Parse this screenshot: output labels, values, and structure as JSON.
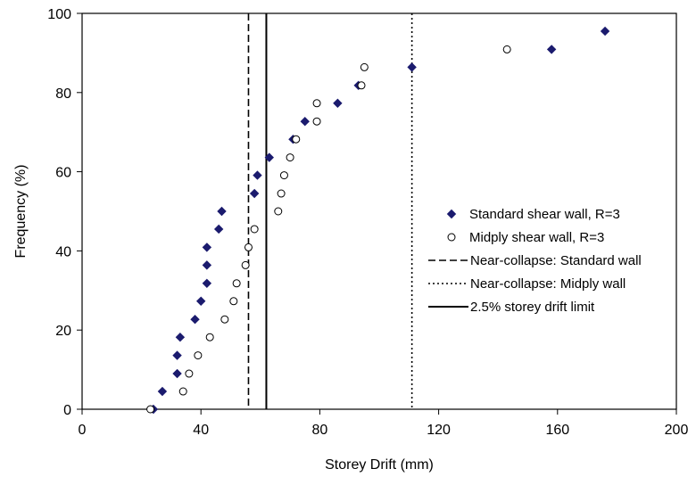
{
  "chart_data": {
    "type": "scatter",
    "title": "",
    "xlabel": "Storey Drift (mm)",
    "ylabel": "Frequency (%)",
    "xlim": [
      0,
      200
    ],
    "ylim": [
      0,
      100
    ],
    "xticks": [
      0,
      40,
      80,
      120,
      160,
      200
    ],
    "yticks": [
      0,
      20,
      40,
      60,
      80,
      100
    ],
    "grid": false,
    "legend_position": "right",
    "series": [
      {
        "name": "Standard shear wall, R=3",
        "marker": "filled-diamond",
        "color": "#1b1b6e",
        "points": [
          [
            24,
            0
          ],
          [
            27,
            4.5
          ],
          [
            32,
            9
          ],
          [
            32,
            13.6
          ],
          [
            33,
            18.2
          ],
          [
            38,
            22.7
          ],
          [
            40,
            27.3
          ],
          [
            42,
            31.8
          ],
          [
            42,
            36.4
          ],
          [
            42,
            40.9
          ],
          [
            46,
            45.5
          ],
          [
            47,
            50
          ],
          [
            58,
            54.5
          ],
          [
            59,
            59.1
          ],
          [
            63,
            63.6
          ],
          [
            71,
            68.2
          ],
          [
            75,
            72.7
          ],
          [
            86,
            77.3
          ],
          [
            93,
            81.8
          ],
          [
            111,
            86.4
          ],
          [
            158,
            90.9
          ],
          [
            176,
            95.5
          ]
        ]
      },
      {
        "name": "Midply shear wall, R=3",
        "marker": "open-circle",
        "color": "#000000",
        "points": [
          [
            23,
            0
          ],
          [
            34,
            4.5
          ],
          [
            36,
            9
          ],
          [
            39,
            13.6
          ],
          [
            43,
            18.2
          ],
          [
            48,
            22.7
          ],
          [
            51,
            27.3
          ],
          [
            52,
            31.8
          ],
          [
            55,
            36.4
          ],
          [
            56,
            40.9
          ],
          [
            58,
            45.5
          ],
          [
            66,
            50
          ],
          [
            67,
            54.5
          ],
          [
            68,
            59.1
          ],
          [
            70,
            63.6
          ],
          [
            72,
            68.2
          ],
          [
            79,
            72.7
          ],
          [
            79,
            77.3
          ],
          [
            94,
            81.8
          ],
          [
            95,
            86.4
          ],
          [
            143,
            90.9
          ]
        ]
      }
    ],
    "reference_lines": [
      {
        "name": "Near-collapse: Standard wall",
        "x": 56,
        "style": "dashed",
        "color": "#000000"
      },
      {
        "name": "Near-collapse: Midply wall",
        "x": 111,
        "style": "dotted",
        "color": "#000000"
      },
      {
        "name": "2.5% storey drift limit",
        "x": 62,
        "style": "solid",
        "color": "#000000"
      }
    ]
  }
}
